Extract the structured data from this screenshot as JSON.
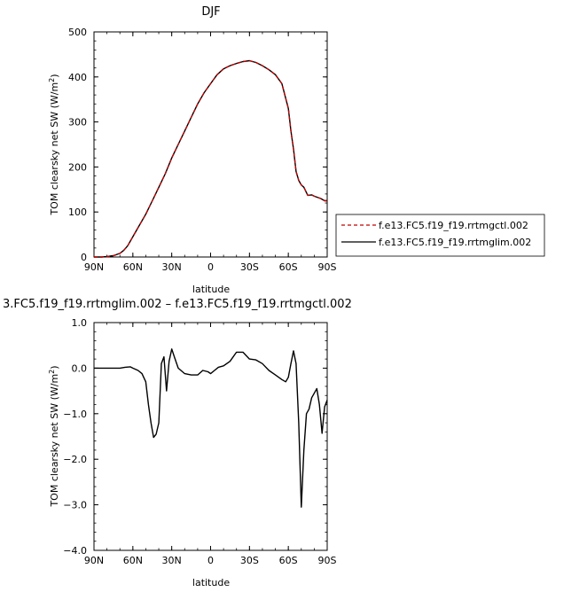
{
  "chart_data": [
    {
      "type": "line",
      "title": "DJF",
      "xlabel": "latitude",
      "ylabel": "TOM clearsky net SW (W/m",
      "ylabel_sup": "2",
      "ylabel_end": ")",
      "xlim": [
        90,
        -90
      ],
      "ylim": [
        0,
        500
      ],
      "xticks": [
        90,
        60,
        30,
        0,
        -30,
        -60,
        -90
      ],
      "xtick_labels": [
        "90N",
        "60N",
        "30N",
        "0",
        "30S",
        "60S",
        "90S"
      ],
      "yticks": [
        0,
        100,
        200,
        300,
        400,
        500
      ],
      "ytick_labels": [
        "0",
        "100",
        "200",
        "300",
        "400",
        "500"
      ],
      "legend": "right",
      "series": [
        {
          "name": "f.e13.FC5.f19_f19.rrtmgctl.002",
          "color": "#c00000",
          "dash": "dashed",
          "x": [
            90,
            84,
            80,
            75,
            70,
            67,
            64,
            60,
            55,
            50,
            45,
            40,
            35,
            30,
            25,
            20,
            15,
            10,
            5,
            0,
            -5,
            -10,
            -15,
            -20,
            -25,
            -30,
            -35,
            -40,
            -45,
            -50,
            -55,
            -60,
            -62,
            -64,
            -66,
            -68,
            -70,
            -72,
            -75,
            -78,
            -80,
            -85,
            -88,
            -90
          ],
          "values": [
            0,
            0,
            1,
            3,
            8,
            15,
            25,
            45,
            70,
            95,
            125,
            155,
            185,
            220,
            250,
            280,
            310,
            340,
            365,
            385,
            405,
            418,
            425,
            430,
            434,
            436,
            432,
            425,
            416,
            405,
            385,
            330,
            280,
            240,
            190,
            170,
            160,
            155,
            137,
            138,
            135,
            130,
            125,
            125
          ]
        },
        {
          "name": "f.e13.FC5.f19_f19.rrtmglim.002",
          "color": "#000000",
          "dash": "solid",
          "x": [
            90,
            84,
            80,
            75,
            70,
            67,
            64,
            60,
            55,
            50,
            45,
            40,
            35,
            30,
            25,
            20,
            15,
            10,
            5,
            0,
            -5,
            -10,
            -15,
            -20,
            -25,
            -30,
            -35,
            -40,
            -45,
            -50,
            -55,
            -60,
            -62,
            -64,
            -66,
            -68,
            -70,
            -72,
            -75,
            -78,
            -80,
            -85,
            -88,
            -90
          ],
          "values": [
            0,
            0,
            1,
            3,
            8,
            15,
            25,
            45,
            70,
            95,
            125,
            155,
            185,
            220,
            250,
            280,
            310,
            340,
            365,
            385,
            405,
            418,
            425,
            430,
            434,
            436,
            432,
            425,
            416,
            405,
            385,
            330,
            280,
            240,
            190,
            170,
            160,
            155,
            137,
            138,
            135,
            130,
            125,
            125
          ]
        }
      ]
    },
    {
      "type": "line",
      "title": "3.FC5.f19_f19.rrtmglim.002 – f.e13.FC5.f19_f19.rrtmgctl.002",
      "xlabel": "latitude",
      "ylabel": "TOM clearsky net SW (W/m",
      "ylabel_sup": "2",
      "ylabel_end": ")",
      "xlim": [
        90,
        -90
      ],
      "ylim": [
        -4.0,
        1.0
      ],
      "xticks": [
        90,
        60,
        30,
        0,
        -30,
        -60,
        -90
      ],
      "xtick_labels": [
        "90N",
        "60N",
        "30N",
        "0",
        "30S",
        "60S",
        "90S"
      ],
      "yticks": [
        1.0,
        0.0,
        -1.0,
        -2.0,
        -3.0,
        -4.0
      ],
      "ytick_labels": [
        "1.0",
        "0.0",
        "−1.0",
        "−2.0",
        "−3.0",
        "−4.0"
      ],
      "series": [
        {
          "color": "#000000",
          "x": [
            90,
            80,
            70,
            66,
            62,
            60,
            56,
            53,
            50,
            48,
            46,
            44,
            42,
            40,
            38,
            36,
            34,
            32,
            30,
            28,
            25,
            20,
            15,
            12,
            10,
            6,
            2,
            0,
            -3,
            -6,
            -10,
            -15,
            -20,
            -25,
            -30,
            -35,
            -40,
            -45,
            -50,
            -55,
            -58,
            -60,
            -62,
            -64,
            -66,
            -68,
            -70,
            -72,
            -74,
            -76,
            -78,
            -80,
            -82,
            -84,
            -86,
            -88,
            -90
          ],
          "values": [
            0,
            0,
            0,
            0.02,
            0.03,
            0,
            -0.05,
            -0.12,
            -0.3,
            -0.8,
            -1.2,
            -1.52,
            -1.45,
            -1.2,
            0.1,
            0.25,
            -0.5,
            0.15,
            0.42,
            0.25,
            0,
            -0.12,
            -0.15,
            -0.15,
            -0.15,
            -0.05,
            -0.08,
            -0.12,
            -0.05,
            0.02,
            0.05,
            0.15,
            0.35,
            0.35,
            0.2,
            0.18,
            0.1,
            -0.05,
            -0.15,
            -0.25,
            -0.3,
            -0.2,
            0.1,
            0.38,
            0.1,
            -1.2,
            -3.05,
            -1.8,
            -1.0,
            -0.9,
            -0.65,
            -0.55,
            -0.45,
            -0.8,
            -1.43,
            -0.85,
            -0.7
          ]
        }
      ]
    }
  ]
}
